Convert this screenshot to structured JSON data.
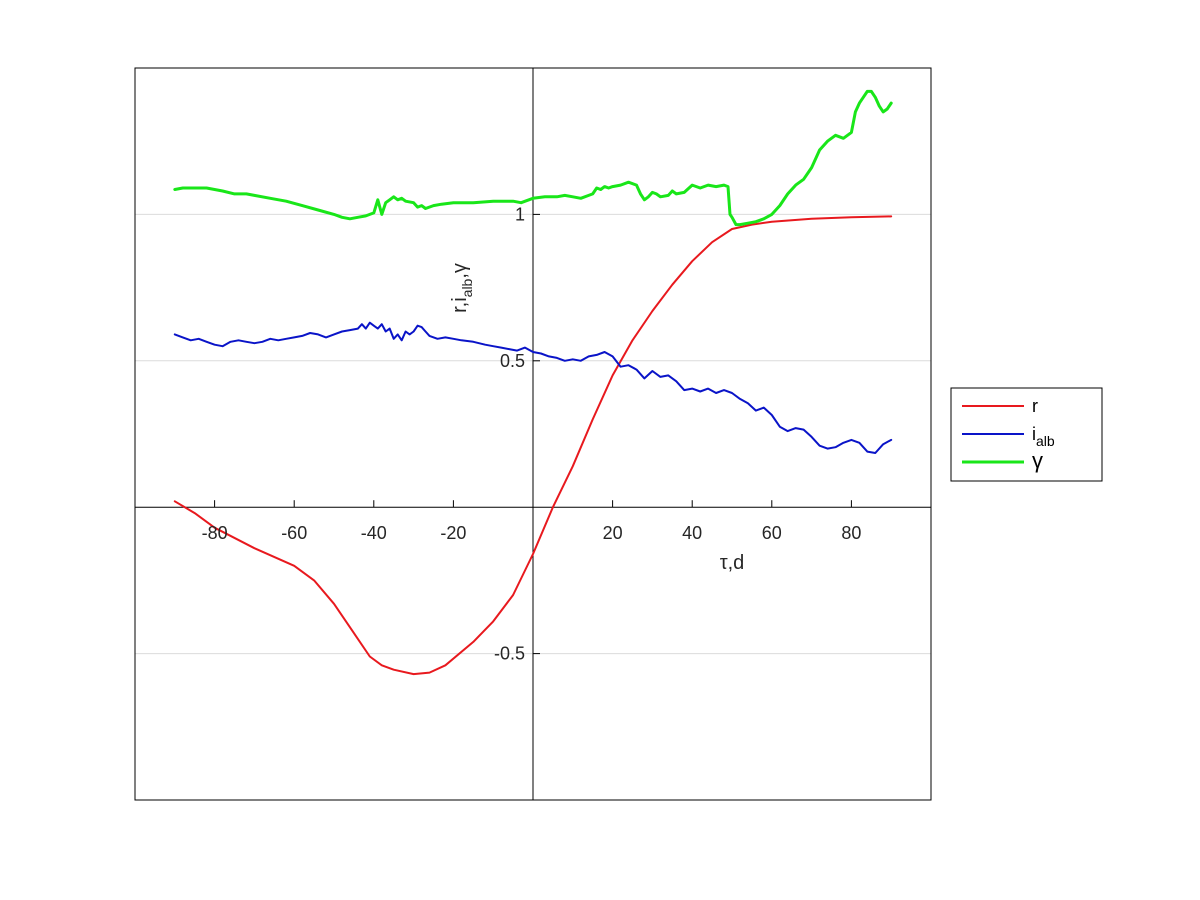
{
  "chart_data": {
    "type": "line",
    "xlabel": "τ,d",
    "ylabel": "r,i",
    "ylabel_sub": "alb",
    "ylabel_tail": ",γ",
    "xlim": [
      -100,
      100
    ],
    "ylim": [
      -1,
      1.5
    ],
    "x_ticks": [
      -80,
      -60,
      -40,
      -20,
      20,
      40,
      60,
      80
    ],
    "x_tick_labels": [
      "-80",
      "-60",
      "-40",
      "-20",
      "20",
      "40",
      "60",
      "80"
    ],
    "y_ticks": [
      -0.5,
      0.5,
      1
    ],
    "y_tick_labels": [
      "-0.5",
      "0.5",
      "1"
    ],
    "grid": "horizontal",
    "legend_position": "outside-right",
    "colors": {
      "r": "#e8191e",
      "i_alb": "#0a14c8",
      "gamma": "#19e619",
      "grid": "#dcdcdc",
      "axis": "#000000"
    },
    "series": [
      {
        "name": "r",
        "legend_label": "r",
        "legend_sub": "",
        "color": "#e8191e",
        "width": 2,
        "points": [
          [
            -90,
            0.02
          ],
          [
            -85,
            -0.02
          ],
          [
            -80,
            -0.07
          ],
          [
            -70,
            -0.14
          ],
          [
            -60,
            -0.2
          ],
          [
            -55,
            -0.25
          ],
          [
            -50,
            -0.33
          ],
          [
            -45,
            -0.43
          ],
          [
            -41,
            -0.51
          ],
          [
            -38,
            -0.54
          ],
          [
            -35,
            -0.555
          ],
          [
            -30,
            -0.57
          ],
          [
            -26,
            -0.565
          ],
          [
            -22,
            -0.54
          ],
          [
            -15,
            -0.46
          ],
          [
            -10,
            -0.39
          ],
          [
            -5,
            -0.3
          ],
          [
            0,
            -0.16
          ],
          [
            5,
            0.0
          ],
          [
            10,
            0.14
          ],
          [
            15,
            0.3
          ],
          [
            20,
            0.45
          ],
          [
            25,
            0.57
          ],
          [
            30,
            0.67
          ],
          [
            35,
            0.76
          ],
          [
            40,
            0.84
          ],
          [
            45,
            0.905
          ],
          [
            50,
            0.95
          ],
          [
            55,
            0.965
          ],
          [
            60,
            0.975
          ],
          [
            70,
            0.985
          ],
          [
            80,
            0.99
          ],
          [
            90,
            0.993
          ]
        ]
      },
      {
        "name": "i_alb",
        "legend_label": "i",
        "legend_sub": "alb",
        "color": "#0a14c8",
        "width": 2,
        "points": [
          [
            -90,
            0.59
          ],
          [
            -88,
            0.58
          ],
          [
            -86,
            0.57
          ],
          [
            -84,
            0.575
          ],
          [
            -82,
            0.565
          ],
          [
            -80,
            0.555
          ],
          [
            -78,
            0.55
          ],
          [
            -76,
            0.565
          ],
          [
            -74,
            0.57
          ],
          [
            -72,
            0.565
          ],
          [
            -70,
            0.56
          ],
          [
            -68,
            0.565
          ],
          [
            -66,
            0.575
          ],
          [
            -64,
            0.57
          ],
          [
            -62,
            0.575
          ],
          [
            -60,
            0.58
          ],
          [
            -58,
            0.585
          ],
          [
            -56,
            0.595
          ],
          [
            -54,
            0.59
          ],
          [
            -52,
            0.58
          ],
          [
            -50,
            0.59
          ],
          [
            -48,
            0.6
          ],
          [
            -46,
            0.605
          ],
          [
            -44,
            0.61
          ],
          [
            -43,
            0.625
          ],
          [
            -42,
            0.61
          ],
          [
            -41,
            0.63
          ],
          [
            -40,
            0.62
          ],
          [
            -39,
            0.61
          ],
          [
            -38,
            0.625
          ],
          [
            -37,
            0.6
          ],
          [
            -36,
            0.61
          ],
          [
            -35,
            0.575
          ],
          [
            -34,
            0.59
          ],
          [
            -33,
            0.57
          ],
          [
            -32,
            0.6
          ],
          [
            -31,
            0.59
          ],
          [
            -30,
            0.6
          ],
          [
            -29,
            0.62
          ],
          [
            -28,
            0.615
          ],
          [
            -27,
            0.6
          ],
          [
            -26,
            0.585
          ],
          [
            -24,
            0.575
          ],
          [
            -22,
            0.58
          ],
          [
            -20,
            0.575
          ],
          [
            -18,
            0.57
          ],
          [
            -15,
            0.565
          ],
          [
            -12,
            0.555
          ],
          [
            -10,
            0.55
          ],
          [
            -8,
            0.545
          ],
          [
            -6,
            0.54
          ],
          [
            -4,
            0.535
          ],
          [
            -2,
            0.545
          ],
          [
            0,
            0.53
          ],
          [
            2,
            0.525
          ],
          [
            4,
            0.515
          ],
          [
            6,
            0.51
          ],
          [
            8,
            0.5
          ],
          [
            10,
            0.505
          ],
          [
            12,
            0.5
          ],
          [
            14,
            0.515
          ],
          [
            16,
            0.52
          ],
          [
            18,
            0.53
          ],
          [
            20,
            0.515
          ],
          [
            22,
            0.48
          ],
          [
            24,
            0.485
          ],
          [
            26,
            0.47
          ],
          [
            28,
            0.44
          ],
          [
            30,
            0.465
          ],
          [
            32,
            0.445
          ],
          [
            34,
            0.45
          ],
          [
            36,
            0.43
          ],
          [
            38,
            0.4
          ],
          [
            40,
            0.405
          ],
          [
            42,
            0.395
          ],
          [
            44,
            0.405
          ],
          [
            46,
            0.39
          ],
          [
            48,
            0.4
          ],
          [
            50,
            0.39
          ],
          [
            52,
            0.37
          ],
          [
            54,
            0.355
          ],
          [
            56,
            0.33
          ],
          [
            58,
            0.34
          ],
          [
            60,
            0.315
          ],
          [
            62,
            0.275
          ],
          [
            64,
            0.26
          ],
          [
            66,
            0.27
          ],
          [
            68,
            0.265
          ],
          [
            70,
            0.24
          ],
          [
            72,
            0.21
          ],
          [
            74,
            0.2
          ],
          [
            76,
            0.205
          ],
          [
            78,
            0.22
          ],
          [
            80,
            0.23
          ],
          [
            82,
            0.22
          ],
          [
            84,
            0.19
          ],
          [
            86,
            0.185
          ],
          [
            88,
            0.215
          ],
          [
            90,
            0.23
          ]
        ]
      },
      {
        "name": "gamma",
        "legend_label": "γ",
        "legend_sub": "",
        "color": "#19e619",
        "width": 3,
        "points": [
          [
            -90,
            1.085
          ],
          [
            -88,
            1.09
          ],
          [
            -85,
            1.09
          ],
          [
            -82,
            1.09
          ],
          [
            -80,
            1.085
          ],
          [
            -78,
            1.08
          ],
          [
            -75,
            1.07
          ],
          [
            -72,
            1.07
          ],
          [
            -70,
            1.065
          ],
          [
            -66,
            1.055
          ],
          [
            -62,
            1.045
          ],
          [
            -58,
            1.03
          ],
          [
            -54,
            1.015
          ],
          [
            -50,
            1.0
          ],
          [
            -48,
            0.99
          ],
          [
            -46,
            0.985
          ],
          [
            -44,
            0.99
          ],
          [
            -42,
            0.995
          ],
          [
            -41,
            1.0
          ],
          [
            -40,
            1.005
          ],
          [
            -39,
            1.05
          ],
          [
            -38,
            1.0
          ],
          [
            -37,
            1.04
          ],
          [
            -36,
            1.05
          ],
          [
            -35,
            1.06
          ],
          [
            -34,
            1.05
          ],
          [
            -33,
            1.055
          ],
          [
            -32,
            1.045
          ],
          [
            -30,
            1.04
          ],
          [
            -29,
            1.025
          ],
          [
            -28,
            1.03
          ],
          [
            -27,
            1.02
          ],
          [
            -25,
            1.03
          ],
          [
            -23,
            1.035
          ],
          [
            -20,
            1.04
          ],
          [
            -15,
            1.04
          ],
          [
            -10,
            1.045
          ],
          [
            -5,
            1.045
          ],
          [
            -3,
            1.04
          ],
          [
            0,
            1.055
          ],
          [
            3,
            1.06
          ],
          [
            6,
            1.06
          ],
          [
            8,
            1.065
          ],
          [
            10,
            1.06
          ],
          [
            12,
            1.055
          ],
          [
            14,
            1.065
          ],
          [
            15,
            1.07
          ],
          [
            16,
            1.09
          ],
          [
            17,
            1.085
          ],
          [
            18,
            1.095
          ],
          [
            19,
            1.09
          ],
          [
            20,
            1.095
          ],
          [
            22,
            1.1
          ],
          [
            24,
            1.11
          ],
          [
            26,
            1.1
          ],
          [
            27,
            1.07
          ],
          [
            28,
            1.05
          ],
          [
            29,
            1.06
          ],
          [
            30,
            1.075
          ],
          [
            31,
            1.07
          ],
          [
            32,
            1.06
          ],
          [
            34,
            1.065
          ],
          [
            35,
            1.08
          ],
          [
            36,
            1.07
          ],
          [
            38,
            1.075
          ],
          [
            40,
            1.1
          ],
          [
            42,
            1.09
          ],
          [
            44,
            1.1
          ],
          [
            46,
            1.095
          ],
          [
            48,
            1.1
          ],
          [
            49,
            1.095
          ],
          [
            49.5,
            1.0
          ],
          [
            50,
            0.99
          ],
          [
            51,
            0.965
          ],
          [
            52,
            0.965
          ],
          [
            54,
            0.97
          ],
          [
            56,
            0.975
          ],
          [
            58,
            0.985
          ],
          [
            60,
            1.0
          ],
          [
            62,
            1.03
          ],
          [
            64,
            1.07
          ],
          [
            66,
            1.1
          ],
          [
            68,
            1.12
          ],
          [
            70,
            1.16
          ],
          [
            72,
            1.22
          ],
          [
            74,
            1.25
          ],
          [
            76,
            1.27
          ],
          [
            78,
            1.26
          ],
          [
            80,
            1.28
          ],
          [
            81,
            1.35
          ],
          [
            82,
            1.38
          ],
          [
            83,
            1.4
          ],
          [
            84,
            1.42
          ],
          [
            85,
            1.42
          ],
          [
            86,
            1.4
          ],
          [
            87,
            1.37
          ],
          [
            88,
            1.35
          ],
          [
            89,
            1.36
          ],
          [
            90,
            1.38
          ]
        ]
      }
    ]
  }
}
